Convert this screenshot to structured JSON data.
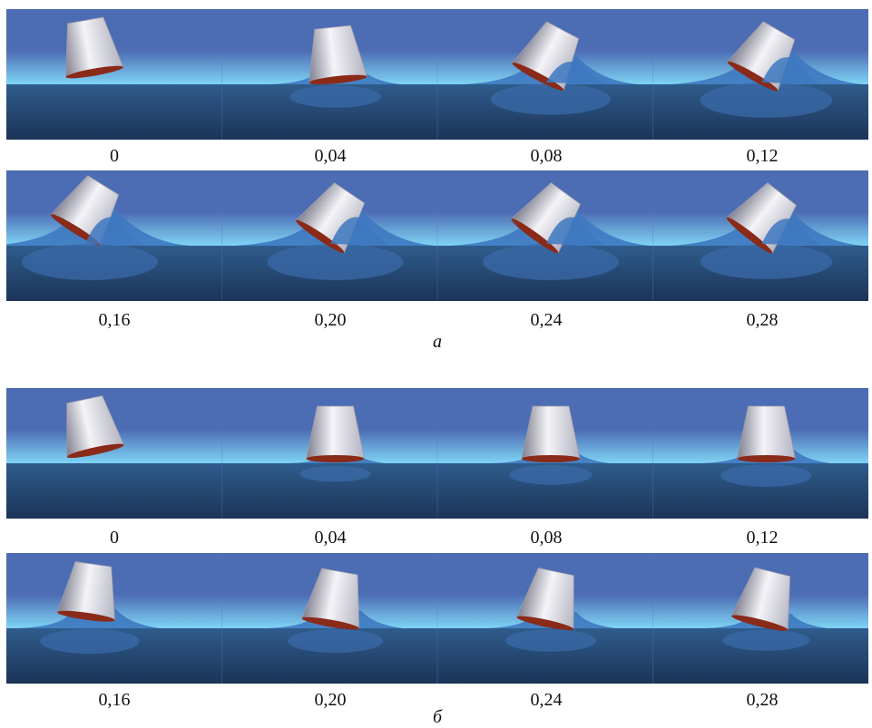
{
  "panels": [
    {
      "caption": "а",
      "rows": [
        {
          "times": [
            "0",
            "0,04",
            "0,08",
            "0,12"
          ],
          "splash": [
            0,
            0.45,
            0.8,
            0.95
          ]
        },
        {
          "times": [
            "0,16",
            "0,20",
            "0,24",
            "0,28"
          ],
          "splash": [
            1.0,
            1.0,
            1.0,
            0.95
          ]
        }
      ],
      "tilt": [
        -10,
        -6,
        28,
        30,
        32,
        34,
        36,
        38
      ]
    },
    {
      "caption": "б",
      "rows": [
        {
          "times": [
            "0",
            "0,04",
            "0,08",
            "0,12"
          ],
          "splash": [
            0,
            0.2,
            0.35,
            0.45
          ]
        },
        {
          "times": [
            "0,16",
            "0,20",
            "0,24",
            "0,28"
          ],
          "splash": [
            0.55,
            0.5,
            0.45,
            0.4
          ]
        }
      ],
      "tilt": [
        -12,
        0,
        0,
        0,
        8,
        10,
        12,
        14
      ]
    }
  ],
  "colors": {
    "sky_top": "#4c6cb4",
    "sky_band": "#7fd4f4",
    "water_top": "#2f5c8c",
    "water_bottom": "#1c3458",
    "capsule_light": "#f4f4f8",
    "capsule_dark": "#7e7e8e",
    "capsule_rim": "#8a2a18",
    "splash": "#3e78c0"
  }
}
